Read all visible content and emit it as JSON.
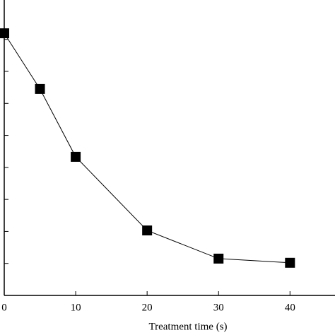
{
  "chart_data": {
    "type": "line",
    "x_label": "Treatment time (s)",
    "x": [
      0,
      5,
      10,
      20,
      30,
      40
    ],
    "series": [
      {
        "color": "#000000",
        "values": [
          8.19,
          6.45,
          4.33,
          2.03,
          1.15,
          1.02
        ]
      }
    ],
    "xlim": [
      0,
      46.3
    ],
    "xticks": [
      0,
      10,
      20,
      30,
      40
    ],
    "ylim": [
      0,
      9.23
    ],
    "yticks": [
      1,
      2,
      3,
      4,
      5,
      6,
      7,
      8
    ]
  }
}
